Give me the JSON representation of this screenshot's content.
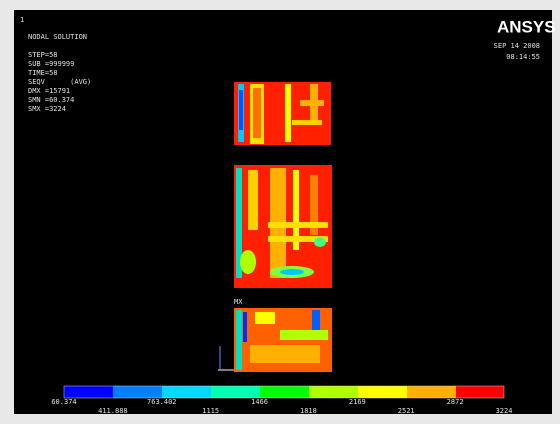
{
  "header": {
    "window_number": "1",
    "title": "NODAL SOLUTION",
    "lines": [
      "STEP=58",
      "SUB =999999",
      "TIME=58",
      "SEQV      (AVG)",
      "DMX =15791",
      "SMN =60.374",
      "SMX =3224"
    ]
  },
  "logo": "ANSYS",
  "date": "SEP 14 2008",
  "time": "08:14:55",
  "max_marker": "MX",
  "legend": {
    "labels": [
      "60.374",
      "411.888",
      "763.402",
      "1115",
      "1466",
      "1818",
      "2169",
      "2521",
      "2872",
      "3224"
    ]
  }
}
